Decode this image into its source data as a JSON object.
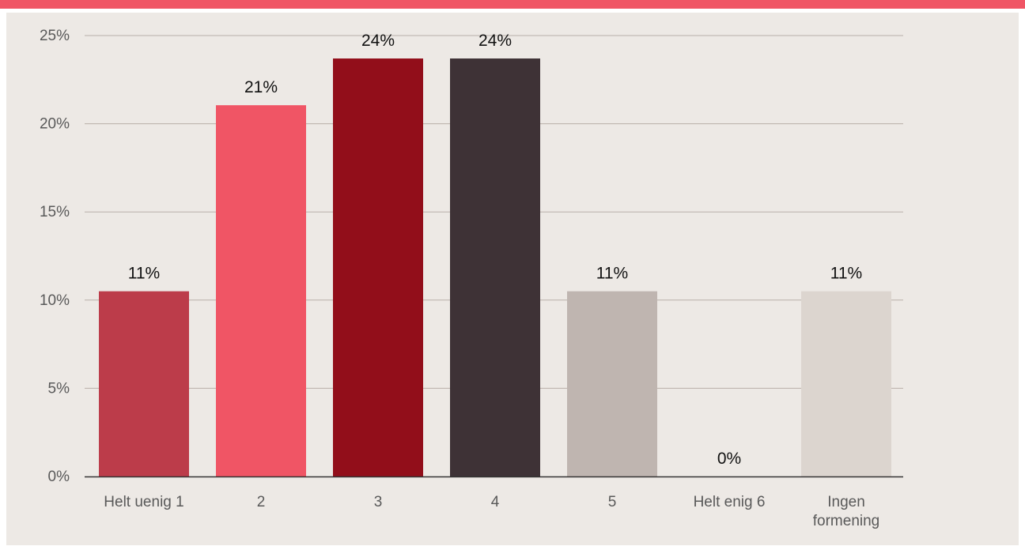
{
  "chart_data": {
    "type": "bar",
    "categories": [
      "Helt uenig 1",
      "2",
      "3",
      "4",
      "5",
      "Helt enig  6",
      "Ingen formening"
    ],
    "category_lines": [
      [
        "Helt uenig 1"
      ],
      [
        "2"
      ],
      [
        "3"
      ],
      [
        "4"
      ],
      [
        "5"
      ],
      [
        "Helt enig  6"
      ],
      [
        "Ingen",
        "formening"
      ]
    ],
    "values": [
      10.5,
      21.05,
      23.7,
      23.7,
      10.5,
      0,
      10.5
    ],
    "data_labels": [
      "11%",
      "21%",
      "24%",
      "24%",
      "11%",
      "0%",
      "11%"
    ],
    "colors": [
      "#bc3c4a",
      "#f05565",
      "#920e1a",
      "#3e3236",
      "#bfb5b0",
      "#bfb5b0",
      "#dcd5cf"
    ],
    "y_ticks": [
      0,
      5,
      10,
      15,
      20,
      25
    ],
    "y_tick_labels": [
      "0%",
      "5%",
      "10%",
      "15%",
      "20%",
      "25%"
    ],
    "ylim": [
      0,
      25
    ],
    "grid": true,
    "legend": false,
    "title": "",
    "xlabel": "",
    "ylabel": ""
  }
}
